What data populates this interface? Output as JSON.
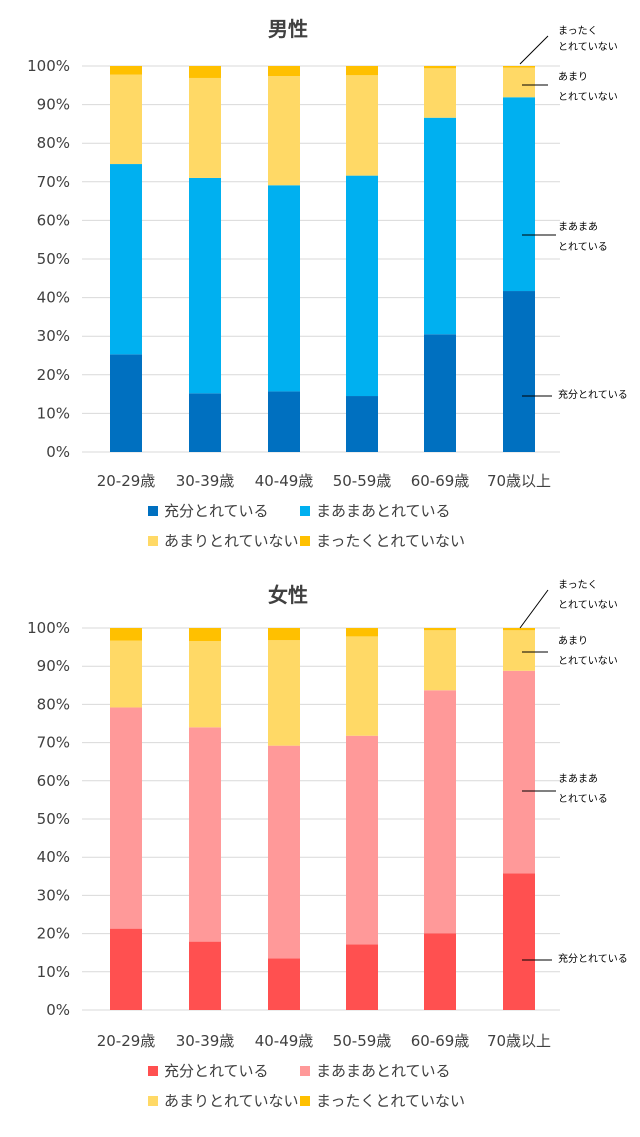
{
  "chart_data": [
    {
      "type": "bar",
      "stacked": true,
      "title": "男性",
      "categories": [
        "20-29歳",
        "30-39歳",
        "40-49歳",
        "50-59歳",
        "60-69歳",
        "70歳以上"
      ],
      "ylim": [
        0,
        100
      ],
      "yticks": [
        "0%",
        "10%",
        "20%",
        "30%",
        "40%",
        "50%",
        "60%",
        "70%",
        "80%",
        "90%",
        "100%"
      ],
      "grid": true,
      "legend_position": "bottom",
      "series": [
        {
          "name": "充分とれている",
          "color": "#0070C0",
          "values": [
            25.3,
            15.2,
            15.7,
            14.5,
            30.5,
            41.7
          ]
        },
        {
          "name": "まあまあとれている",
          "color": "#00B0F0",
          "values": [
            49.3,
            55.8,
            53.4,
            57.1,
            56.1,
            50.2
          ]
        },
        {
          "name": "あまりとれていない",
          "color": "#FFD966",
          "values": [
            23.2,
            25.9,
            28.3,
            26.0,
            12.8,
            7.7
          ]
        },
        {
          "name": "まったくとれていない",
          "color": "#FFC000",
          "values": [
            2.2,
            3.1,
            2.6,
            2.4,
            0.6,
            0.4
          ]
        }
      ],
      "annotations": [
        {
          "lines": [
            "まったく",
            "とれていない"
          ]
        },
        {
          "lines": [
            "あまり",
            "とれていない"
          ]
        },
        {
          "lines": [
            "まあまあ",
            "とれている"
          ]
        },
        {
          "lines": [
            "充分とれている"
          ]
        }
      ]
    },
    {
      "type": "bar",
      "stacked": true,
      "title": "女性",
      "categories": [
        "20-29歳",
        "30-39歳",
        "40-49歳",
        "50-59歳",
        "60-69歳",
        "70歳以上"
      ],
      "ylim": [
        0,
        100
      ],
      "yticks": [
        "0%",
        "10%",
        "20%",
        "30%",
        "40%",
        "50%",
        "60%",
        "70%",
        "80%",
        "90%",
        "100%"
      ],
      "grid": true,
      "legend_position": "bottom",
      "series": [
        {
          "name": "充分とれている",
          "color": "#FF5050",
          "values": [
            21.3,
            17.9,
            13.5,
            17.2,
            20.1,
            35.8
          ]
        },
        {
          "name": "まあまあとれている",
          "color": "#FF9999",
          "values": [
            57.9,
            56.1,
            55.7,
            54.6,
            63.6,
            53.0
          ]
        },
        {
          "name": "あまりとれていない",
          "color": "#FFD966",
          "values": [
            17.5,
            22.6,
            27.6,
            26.0,
            15.7,
            10.6
          ]
        },
        {
          "name": "まったくとれていない",
          "color": "#FFC000",
          "values": [
            3.3,
            3.4,
            3.2,
            2.2,
            0.6,
            0.6
          ]
        }
      ],
      "annotations": [
        {
          "lines": [
            "まったく",
            "とれていない"
          ]
        },
        {
          "lines": [
            "あまり",
            "とれていない"
          ]
        },
        {
          "lines": [
            "まあまあ",
            "とれている"
          ]
        },
        {
          "lines": [
            "充分とれている"
          ]
        }
      ]
    }
  ]
}
